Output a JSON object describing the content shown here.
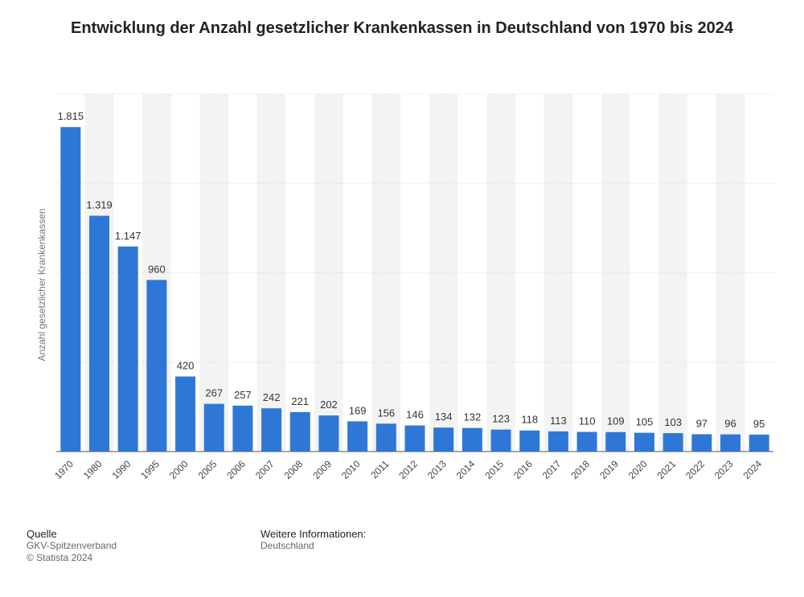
{
  "title": "Entwicklung der Anzahl gesetzlicher Krankenkassen in Deutschland von 1970 bis 2024",
  "colors": {
    "bar": "#2f77d6",
    "grid": "#d9d9d9",
    "band": "#f3f3f3"
  },
  "chart_data": {
    "type": "bar",
    "title": "Entwicklung der Anzahl gesetzlicher Krankenkassen in Deutschland von 1970 bis 2024",
    "xlabel": "",
    "ylabel": "Anzahl gesetzlicher Krankenkassen",
    "ylim": [
      0,
      2000
    ],
    "grid": true,
    "categories": [
      "1970",
      "1980",
      "1990",
      "1995",
      "2000",
      "2005",
      "2006",
      "2007",
      "2008",
      "2009",
      "2010",
      "2011",
      "2012",
      "2013",
      "2014",
      "2015",
      "2016",
      "2017",
      "2018",
      "2019",
      "2020",
      "2021",
      "2022",
      "2023",
      "2024"
    ],
    "values": [
      1815,
      1319,
      1147,
      960,
      420,
      267,
      257,
      242,
      221,
      202,
      169,
      156,
      146,
      134,
      132,
      123,
      118,
      113,
      110,
      109,
      105,
      103,
      97,
      96,
      95
    ],
    "value_labels": [
      "1.815",
      "1.319",
      "1.147",
      "960",
      "420",
      "267",
      "257",
      "242",
      "221",
      "202",
      "169",
      "156",
      "146",
      "134",
      "132",
      "123",
      "118",
      "113",
      "110",
      "109",
      "105",
      "103",
      "97",
      "96",
      "95"
    ]
  },
  "footer": {
    "source_heading": "Quelle",
    "source_name": "GKV-Spitzenverband",
    "copyright": "© Statista 2024",
    "info_heading": "Weitere Informationen:",
    "info_text": "Deutschland"
  }
}
